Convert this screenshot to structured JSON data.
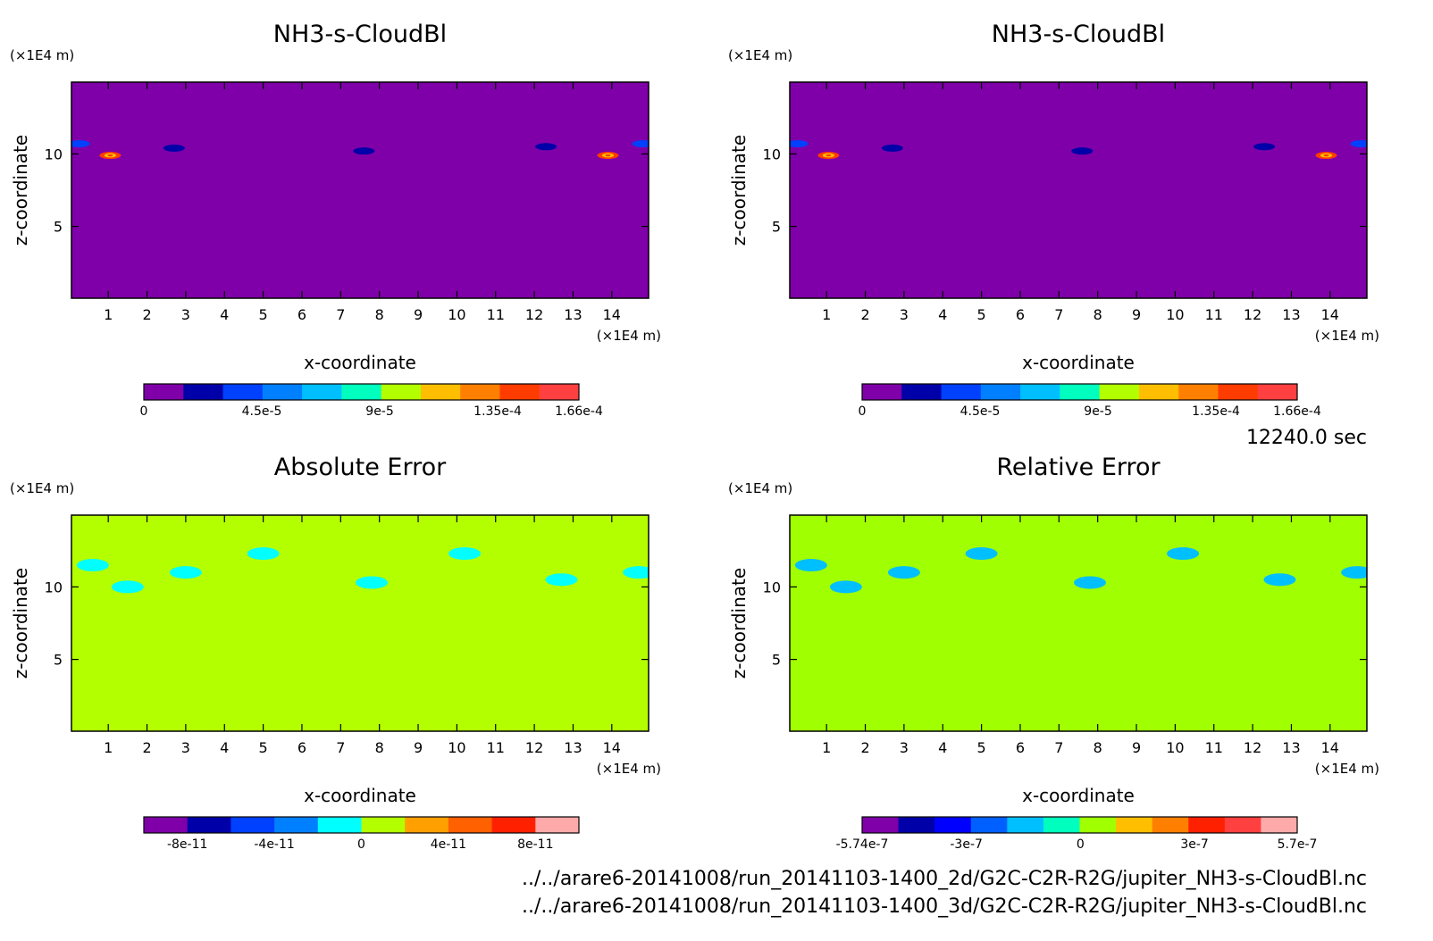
{
  "chart_data": [
    {
      "type": "heatmap",
      "title": "NH3-s-CloudBl",
      "xlabel": "x-coordinate",
      "ylabel": "z-coordinate",
      "x_unit": "(×1E4 m)",
      "y_unit": "(×1E4 m)",
      "xlim": [
        0.05,
        14.95
      ],
      "ylim": [
        0.05,
        14.95
      ],
      "x_ticks": [
        1,
        2,
        3,
        4,
        5,
        6,
        7,
        8,
        9,
        10,
        11,
        12,
        13,
        14
      ],
      "y_ticks": [
        5,
        10
      ],
      "background_value": 0,
      "colorbar": {
        "colors": [
          "#7f00a8",
          "#0000a8",
          "#0040ff",
          "#0080ff",
          "#00bfff",
          "#00ffbf",
          "#b3ff00",
          "#ffbf00",
          "#ff8000",
          "#ff3c00",
          "#ff4040"
        ],
        "tick_labels": [
          "0",
          "4.5e-5",
          "9e-5",
          "1.35e-4",
          "1.66e-4"
        ],
        "tick_values": [
          0,
          4.5e-05,
          9e-05,
          0.000135,
          0.000166
        ],
        "range": [
          0,
          0.000166
        ]
      },
      "features": [
        {
          "x": 0.25,
          "z": 10.7,
          "value": 4e-05
        },
        {
          "x": 1.05,
          "z": 9.9,
          "value": 0.00015
        },
        {
          "x": 2.7,
          "z": 10.4,
          "value": 3e-05
        },
        {
          "x": 7.6,
          "z": 10.2,
          "value": 3e-05
        },
        {
          "x": 12.3,
          "z": 10.5,
          "value": 2.5e-05
        },
        {
          "x": 13.9,
          "z": 9.9,
          "value": 0.00015
        },
        {
          "x": 14.8,
          "z": 10.7,
          "value": 4e-05
        }
      ]
    },
    {
      "type": "heatmap",
      "title": "NH3-s-CloudBl",
      "xlabel": "x-coordinate",
      "ylabel": "z-coordinate",
      "x_unit": "(×1E4 m)",
      "y_unit": "(×1E4 m)",
      "xlim": [
        0.05,
        14.95
      ],
      "ylim": [
        0.05,
        14.95
      ],
      "x_ticks": [
        1,
        2,
        3,
        4,
        5,
        6,
        7,
        8,
        9,
        10,
        11,
        12,
        13,
        14
      ],
      "y_ticks": [
        5,
        10
      ],
      "background_value": 0,
      "colorbar": {
        "colors": [
          "#7f00a8",
          "#0000a8",
          "#0040ff",
          "#0080ff",
          "#00bfff",
          "#00ffbf",
          "#b3ff00",
          "#ffbf00",
          "#ff8000",
          "#ff3c00",
          "#ff4040"
        ],
        "tick_labels": [
          "0",
          "4.5e-5",
          "9e-5",
          "1.35e-4",
          "1.66e-4"
        ],
        "tick_values": [
          0,
          4.5e-05,
          9e-05,
          0.000135,
          0.000166
        ],
        "range": [
          0,
          0.000166
        ]
      },
      "features": [
        {
          "x": 0.25,
          "z": 10.7,
          "value": 4e-05
        },
        {
          "x": 1.05,
          "z": 9.9,
          "value": 0.00015
        },
        {
          "x": 2.7,
          "z": 10.4,
          "value": 3e-05
        },
        {
          "x": 7.6,
          "z": 10.2,
          "value": 3e-05
        },
        {
          "x": 12.3,
          "z": 10.5,
          "value": 2.5e-05
        },
        {
          "x": 13.9,
          "z": 9.9,
          "value": 0.00015
        },
        {
          "x": 14.8,
          "z": 10.7,
          "value": 4e-05
        }
      ]
    },
    {
      "type": "heatmap",
      "title": "Absolute Error",
      "xlabel": "x-coordinate",
      "ylabel": "z-coordinate",
      "x_unit": "(×1E4 m)",
      "y_unit": "(×1E4 m)",
      "xlim": [
        0.05,
        14.95
      ],
      "ylim": [
        0.05,
        14.95
      ],
      "x_ticks": [
        1,
        2,
        3,
        4,
        5,
        6,
        7,
        8,
        9,
        10,
        11,
        12,
        13,
        14
      ],
      "y_ticks": [
        5,
        10
      ],
      "background_value": 0,
      "colorbar": {
        "colors": [
          "#7f00a8",
          "#0000a8",
          "#0040ff",
          "#0080ff",
          "#00ffff",
          "#b3ff00",
          "#ffa000",
          "#ff6000",
          "#ff2000",
          "#ffaaaa"
        ],
        "tick_labels": [
          "-8e-11",
          "-4e-11",
          "0",
          "4e-11",
          "8e-11"
        ],
        "tick_values": [
          -8e-11,
          -4e-11,
          0,
          4e-11,
          8e-11
        ],
        "range": [
          -1e-10,
          1e-10
        ]
      },
      "features": [
        {
          "x": 0.6,
          "z": 11.5,
          "value": -1e-11
        },
        {
          "x": 1.5,
          "z": 10.0,
          "value": -1e-11
        },
        {
          "x": 3.0,
          "z": 11.0,
          "value": -1e-11
        },
        {
          "x": 5.0,
          "z": 12.3,
          "value": -1e-11
        },
        {
          "x": 7.8,
          "z": 10.3,
          "value": -1e-11
        },
        {
          "x": 10.2,
          "z": 12.3,
          "value": -1e-11
        },
        {
          "x": 12.7,
          "z": 10.5,
          "value": -1e-11
        },
        {
          "x": 14.7,
          "z": 11.0,
          "value": -1e-11
        }
      ]
    },
    {
      "type": "heatmap",
      "title": "Relative Error",
      "xlabel": "x-coordinate",
      "ylabel": "z-coordinate",
      "x_unit": "(×1E4 m)",
      "y_unit": "(×1E4 m)",
      "xlim": [
        0.05,
        14.95
      ],
      "ylim": [
        0.05,
        14.95
      ],
      "x_ticks": [
        1,
        2,
        3,
        4,
        5,
        6,
        7,
        8,
        9,
        10,
        11,
        12,
        13,
        14
      ],
      "y_ticks": [
        5,
        10
      ],
      "background_value": 0,
      "colorbar": {
        "colors": [
          "#7f00a8",
          "#0000a8",
          "#0000ff",
          "#0060ff",
          "#00bfff",
          "#00ffbf",
          "#a0ff00",
          "#ffbf00",
          "#ff8000",
          "#ff2000",
          "#ff4040",
          "#ffaaaa"
        ],
        "tick_labels": [
          "-5.74e-7",
          "-3e-7",
          "0",
          "3e-7",
          "5.7e-7"
        ],
        "tick_values": [
          -5.74e-07,
          -3e-07,
          0,
          3e-07,
          5.7e-07
        ],
        "range": [
          -5.74e-07,
          5.7e-07
        ]
      },
      "features": [
        {
          "x": 0.6,
          "z": 11.5,
          "value": -1e-07
        },
        {
          "x": 1.5,
          "z": 10.0,
          "value": -1e-07
        },
        {
          "x": 3.0,
          "z": 11.0,
          "value": -1e-07
        },
        {
          "x": 5.0,
          "z": 12.3,
          "value": -1e-07
        },
        {
          "x": 7.8,
          "z": 10.3,
          "value": -1e-07
        },
        {
          "x": 10.2,
          "z": 12.3,
          "value": -1e-07
        },
        {
          "x": 12.7,
          "z": 10.5,
          "value": -1e-07
        },
        {
          "x": 14.7,
          "z": 11.0,
          "value": -1e-07
        }
      ]
    }
  ],
  "timestamp": "12240.0 sec",
  "footer": {
    "line1": "../../arare6-20141008/run_20141103-1400_2d/G2C-C2R-R2G/jupiter_NH3-s-CloudBl.nc",
    "line2": "../../arare6-20141008/run_20141103-1400_3d/G2C-C2R-R2G/jupiter_NH3-s-CloudBl.nc"
  }
}
